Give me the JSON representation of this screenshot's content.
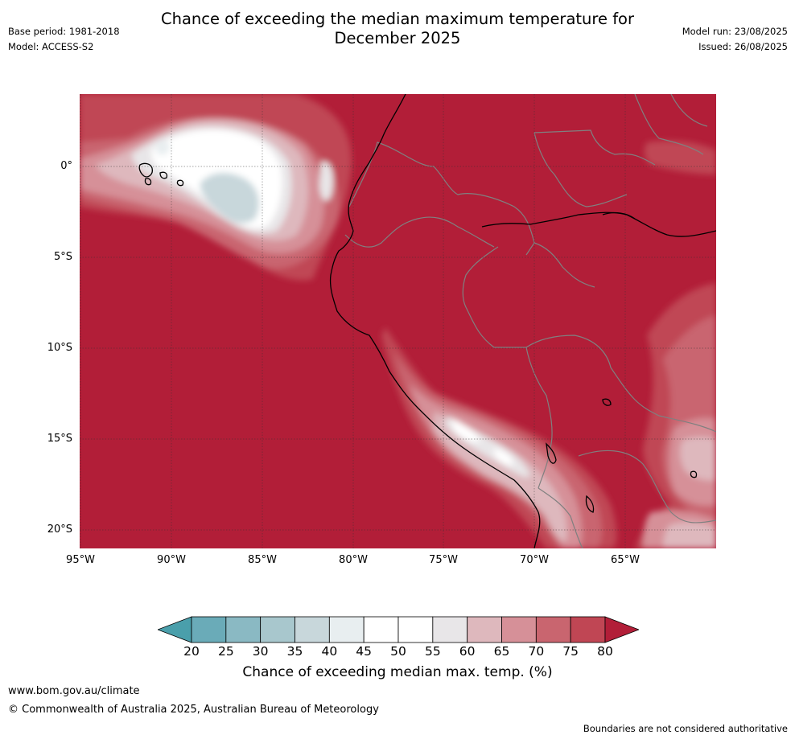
{
  "header": {
    "title_line1": "Chance of exceeding the median maximum temperature for",
    "title_line2": "December 2025",
    "base_period": "Base period: 1981-2018",
    "model": "Model: ACCESS-S2",
    "model_run": "Model run: 23/08/2025",
    "issued": "Issued: 26/08/2025"
  },
  "map": {
    "latitude_labels": [
      "0°",
      "5°S",
      "10°S",
      "15°S",
      "20°S"
    ],
    "longitude_labels": [
      "95°W",
      "90°W",
      "85°W",
      "80°W",
      "75°W",
      "70°W",
      "65°W"
    ],
    "background_color": "#b21e38",
    "country_border_color": "#808080",
    "coastline_color": "#000000",
    "gridline_color": "#333333"
  },
  "colorbar": {
    "ticks": [
      "20",
      "25",
      "30",
      "35",
      "40",
      "45",
      "50",
      "55",
      "60",
      "65",
      "70",
      "75",
      "80"
    ],
    "colors": [
      "#4a9fab",
      "#6aabb8",
      "#8ab9c3",
      "#a8c7cd",
      "#c8d7db",
      "#e8eef0",
      "#ffffff",
      "#ffffff",
      "#e8e6e8",
      "#deb8bd",
      "#d69098",
      "#c9656f",
      "#c04654",
      "#b21e38"
    ],
    "label": "Chance of exceeding median max. temp. (%)"
  },
  "footer": {
    "url": "www.bom.gov.au/climate",
    "copyright": "© Commonwealth of Australia 2025, Australian Bureau of Meteorology",
    "disclaimer": "Boundaries are not considered authoritative"
  }
}
